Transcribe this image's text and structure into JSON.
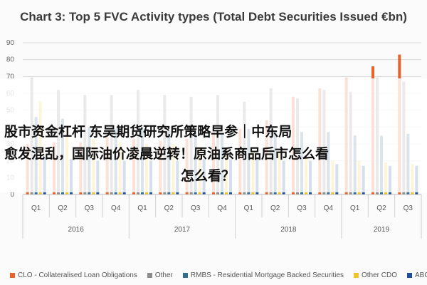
{
  "overlay": {
    "line1": "股市资金杠杆 东吴期货研究所策略早参｜中东局",
    "line2": "愈发混乱，国际油价凌晨逆转！原油系商品后市怎么看",
    "line3": "怎么看？"
  },
  "chart_data": {
    "type": "bar",
    "title": "Chart 3: Top 5 FVC Activity types (Total Debt Securities Issued €bn)",
    "xlabel": "",
    "ylabel": "",
    "ylim": [
      0,
      90
    ],
    "yticks": [
      0,
      10,
      20,
      30,
      40,
      50,
      60,
      70,
      80,
      90
    ],
    "grid": true,
    "legend_position": "bottom",
    "categories": [
      "Q1",
      "Q2",
      "Q3",
      "Q4",
      "Q1",
      "Q2",
      "Q3",
      "Q4",
      "Q1",
      "Q2",
      "Q3",
      "Q4",
      "Q1",
      "Q2",
      "Q3"
    ],
    "groups": [
      {
        "label": "2016",
        "count": 4
      },
      {
        "label": "2017",
        "count": 4
      },
      {
        "label": "2018",
        "count": 4
      },
      {
        "label": "2019",
        "count": 3
      }
    ],
    "series": [
      {
        "name": "CLO - Collateralised Loan Obligations",
        "color": "#e8622c",
        "values": [
          30,
          31,
          31,
          34,
          33,
          32,
          33,
          37,
          39,
          44,
          58,
          63,
          69,
          76,
          83
        ]
      },
      {
        "name": "Other",
        "color": "#8c8c8c",
        "values": [
          69,
          62,
          59,
          59,
          62,
          59,
          58,
          59,
          55,
          63,
          57,
          62,
          61,
          69,
          67
        ]
      },
      {
        "name": "RMBS - Residential Mortgage Backed Securities",
        "color": "#2f6f8f",
        "values": [
          46,
          45,
          40,
          39,
          39,
          38,
          37,
          36,
          39,
          37,
          37,
          37,
          35,
          35,
          36
        ]
      },
      {
        "name": "Other CDO",
        "color": "#f2c12e",
        "values": [
          55,
          38,
          33,
          31,
          30,
          30,
          28,
          27,
          26,
          26,
          22,
          20,
          20,
          19,
          18
        ]
      },
      {
        "name": "ABCP",
        "color": "#1f4e9c",
        "values": [
          22,
          21,
          20,
          20,
          20,
          20,
          21,
          21,
          21,
          20,
          20,
          18,
          17,
          17,
          17
        ]
      }
    ]
  }
}
